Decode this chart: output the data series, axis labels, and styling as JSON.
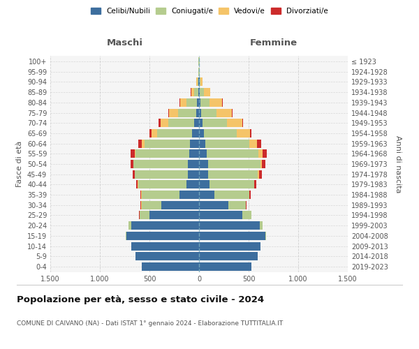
{
  "age_groups": [
    "0-4",
    "5-9",
    "10-14",
    "15-19",
    "20-24",
    "25-29",
    "30-34",
    "35-39",
    "40-44",
    "45-49",
    "50-54",
    "55-59",
    "60-64",
    "65-69",
    "70-74",
    "75-79",
    "80-84",
    "85-89",
    "90-94",
    "95-99",
    "100+"
  ],
  "birth_years": [
    "2019-2023",
    "2014-2018",
    "2009-2013",
    "2004-2008",
    "1999-2003",
    "1994-1998",
    "1989-1993",
    "1984-1988",
    "1979-1983",
    "1974-1978",
    "1969-1973",
    "1964-1968",
    "1959-1963",
    "1954-1958",
    "1949-1953",
    "1944-1948",
    "1939-1943",
    "1934-1938",
    "1929-1933",
    "1924-1928",
    "≤ 1923"
  ],
  "colors": {
    "celibe": "#3D6E9E",
    "coniugato": "#B5CC8E",
    "vedovo": "#F5C469",
    "divorziato": "#CC2B2B"
  },
  "maschi": {
    "celibe": [
      580,
      640,
      680,
      730,
      680,
      500,
      380,
      200,
      125,
      115,
      110,
      100,
      90,
      70,
      50,
      30,
      20,
      10,
      5,
      3,
      2
    ],
    "coniugato": [
      0,
      1,
      2,
      10,
      30,
      100,
      200,
      380,
      490,
      530,
      550,
      540,
      460,
      350,
      260,
      180,
      110,
      40,
      10,
      3,
      2
    ],
    "vedovo": [
      0,
      0,
      0,
      0,
      0,
      0,
      1,
      1,
      2,
      3,
      5,
      10,
      30,
      60,
      80,
      90,
      60,
      30,
      10,
      2,
      1
    ],
    "divorziato": [
      0,
      0,
      0,
      1,
      2,
      5,
      8,
      10,
      15,
      20,
      25,
      40,
      35,
      20,
      15,
      8,
      5,
      2,
      1,
      0,
      0
    ]
  },
  "femmine": {
    "nubile": [
      525,
      590,
      620,
      670,
      610,
      440,
      295,
      155,
      105,
      95,
      90,
      80,
      65,
      48,
      35,
      20,
      12,
      8,
      4,
      2,
      2
    ],
    "coniugata": [
      0,
      1,
      2,
      8,
      28,
      85,
      175,
      350,
      450,
      500,
      530,
      520,
      445,
      335,
      245,
      155,
      95,
      38,
      8,
      3,
      2
    ],
    "vedova": [
      0,
      0,
      0,
      0,
      0,
      1,
      2,
      3,
      4,
      9,
      14,
      38,
      78,
      128,
      155,
      155,
      125,
      65,
      23,
      5,
      2
    ],
    "divorziata": [
      0,
      0,
      0,
      1,
      2,
      4,
      9,
      13,
      18,
      28,
      33,
      48,
      38,
      16,
      11,
      7,
      4,
      2,
      1,
      0,
      0
    ]
  },
  "xlim": 1500,
  "xtick_values": [
    -1500,
    -1000,
    -500,
    0,
    500,
    1000,
    1500
  ],
  "xtick_labels": [
    "1.500",
    "1.000",
    "500",
    "0",
    "500",
    "1.000",
    "1.500"
  ],
  "title": "Popolazione per età, sesso e stato civile - 2024",
  "subtitle": "COMUNE DI CAIVANO (NA) - Dati ISTAT 1° gennaio 2024 - Elaborazione TUTTITALIA.IT",
  "ylabel_left": "Fasce di età",
  "ylabel_right": "Anni di nascita",
  "xlabel_maschi": "Maschi",
  "xlabel_femmine": "Femmine",
  "bg_color": "#FFFFFF",
  "plot_bg": "#F5F5F5",
  "grid_color": "#CCCCCC",
  "legend_labels": [
    "Celibi/Nubili",
    "Coniugati/e",
    "Vedovi/e",
    "Divorziati/e"
  ]
}
